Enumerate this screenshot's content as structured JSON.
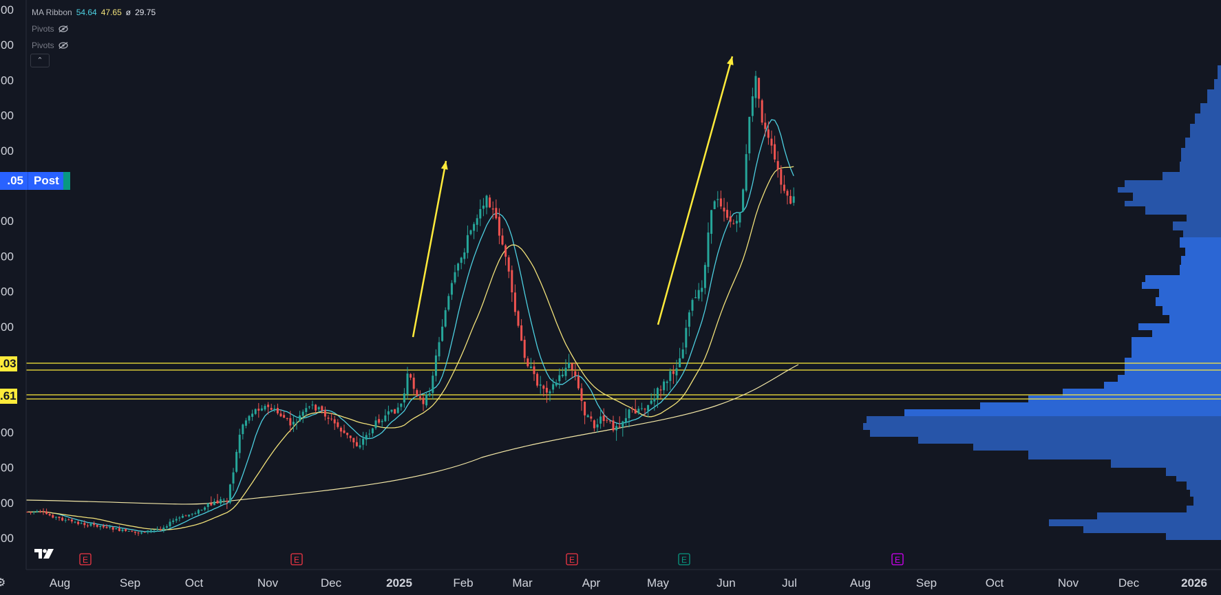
{
  "indicator": {
    "name": "MA Ribbon",
    "v1": "54.64",
    "v2": "47.65",
    "sep": "ø",
    "v3": "29.75"
  },
  "pivots": [
    "Pivots",
    "Pivots"
  ],
  "collapse_glyph": "⌃",
  "post_tag": {
    "price": ".05",
    "label": "Post"
  },
  "level_tags": [
    ".03",
    ".61"
  ],
  "y_axis_labels": [
    "00",
    "00",
    "00",
    "00",
    "00",
    "00",
    "00",
    "00",
    "00",
    "00",
    "00",
    "00",
    "00",
    "00",
    "00",
    "00"
  ],
  "x_axis_labels": [
    "Aug",
    "Sep",
    "Oct",
    "Nov",
    "Dec",
    "2025",
    "Feb",
    "Mar",
    "Apr",
    "May",
    "Jun",
    "Jul",
    "Aug",
    "Sep",
    "Oct",
    "Nov",
    "Dec",
    "2026"
  ],
  "earnings_glyph": "E",
  "earnings_markers": [
    {
      "month": "Aug",
      "color": "#f23645"
    },
    {
      "month": "Nov",
      "color": "#f23645"
    },
    {
      "month": "Mar",
      "color": "#f23645"
    },
    {
      "month": "May",
      "color": "#089981"
    },
    {
      "month": "Aug",
      "color": "#d500f9"
    }
  ],
  "colors": {
    "background": "#131722",
    "up": "#26a69a",
    "down": "#ef5350",
    "ma_fast": "#4dd0e1",
    "ma_mid": "#f2e27a",
    "ma_slow": "#f5e9a8",
    "level": "#ffeb3b",
    "arrow": "#ffeb3b",
    "volume_profile": "#2962ff"
  },
  "chart_data": {
    "type": "candlestick",
    "title": "",
    "x_start": "Jul 2024",
    "x_end": "Jul 2025",
    "price_tags_visible": {
      "post": ".05",
      "levels": [
        ".03",
        ".61"
      ]
    },
    "series": [
      {
        "name": "MA Ribbon",
        "values_latest": [
          54.64,
          47.65,
          29.75
        ]
      }
    ],
    "trend_segments": [
      {
        "period": "Oct 2024 - Feb 2025",
        "direction": "up"
      },
      {
        "period": "Feb 2025 - Apr 2025",
        "direction": "down"
      },
      {
        "period": "Apr 2025 - Jun 2025",
        "direction": "up"
      },
      {
        "period": "Jun 2025 - Jul 2025",
        "direction": "down"
      }
    ],
    "annotations": [
      "arrow up Jan-Feb 2025",
      "arrow up May-Jun 2025",
      "horizontal level pair upper",
      "horizontal level pair lower"
    ],
    "volume_profile": "right side, visible range"
  }
}
